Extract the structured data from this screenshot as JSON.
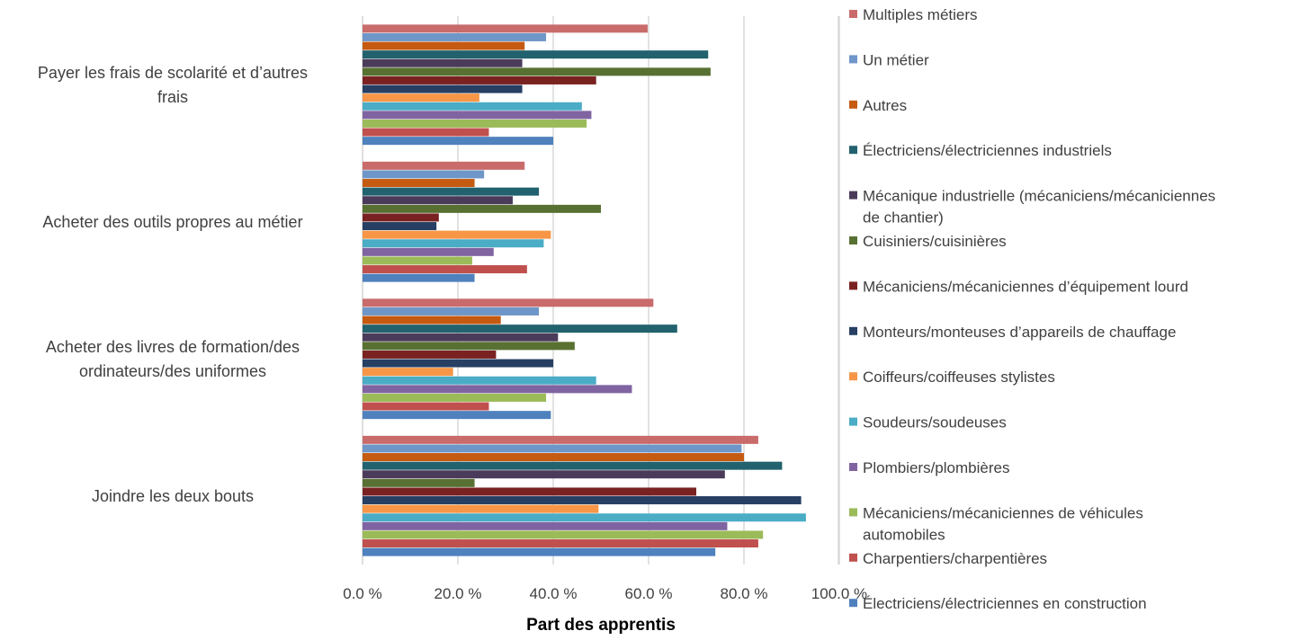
{
  "chart_data": {
    "type": "bar",
    "orientation": "horizontal",
    "xlabel": "Part des apprentis",
    "ylabel": "",
    "xlim": [
      0,
      100
    ],
    "x_ticks": [
      "0.0 %",
      "20.0 %",
      "40.0 %",
      "60.0 %",
      "80.0 %",
      "100.0 %"
    ],
    "grid": true,
    "legend_position": "right",
    "categories": [
      [
        "Payer les frais de scolarité et d’autres",
        "frais"
      ],
      [
        "Acheter des outils propres au métier"
      ],
      [
        "Acheter des livres de formation/des",
        "ordinateurs/des uniformes"
      ],
      [
        "Joindre les deux bouts"
      ]
    ],
    "series": [
      {
        "name": "Multiples métiers",
        "color": "#C96B6B",
        "values": [
          59.8,
          34.0,
          61.0,
          83.0
        ]
      },
      {
        "name": "Un métier",
        "color": "#6F96C8",
        "values": [
          38.5,
          25.5,
          37.0,
          79.5
        ]
      },
      {
        "name": "Autres",
        "color": "#C55A11",
        "values": [
          34.0,
          23.5,
          29.0,
          80.0
        ]
      },
      {
        "name": "Électriciens/électriciennes industriels",
        "color": "#22626E",
        "values": [
          72.5,
          37.0,
          66.0,
          88.0
        ]
      },
      {
        "name": "Mécanique industrielle (mécaniciens/mécaniciennes de chantier)",
        "color": "#4B3B5A",
        "values": [
          33.5,
          31.5,
          41.0,
          76.0
        ]
      },
      {
        "name": "Cuisiniers/cuisinières",
        "color": "#587132",
        "values": [
          73.0,
          50.0,
          44.5,
          23.5
        ]
      },
      {
        "name": "Mécaniciens/mécaniciennes d’équipement lourd",
        "color": "#7A2222",
        "values": [
          49.0,
          16.0,
          28.0,
          70.0
        ]
      },
      {
        "name": "Monteurs/monteuses d’appareils de chauffage",
        "color": "#263F63",
        "values": [
          33.5,
          15.5,
          40.0,
          92.0
        ]
      },
      {
        "name": "Coiffeurs/coiffeuses stylistes",
        "color": "#F79646",
        "values": [
          24.5,
          39.5,
          19.0,
          49.5
        ]
      },
      {
        "name": "Soudeurs/soudeuses",
        "color": "#4BACC6",
        "values": [
          46.0,
          38.0,
          49.0,
          93.0
        ]
      },
      {
        "name": "Plombiers/plombières",
        "color": "#8064A2",
        "values": [
          48.0,
          27.5,
          56.5,
          76.5
        ]
      },
      {
        "name": "Mécaniciens/mécaniciennes de véhicules automobiles",
        "color": "#9BBB59",
        "values": [
          47.0,
          23.0,
          38.5,
          84.0
        ]
      },
      {
        "name": "Charpentiers/charpentières",
        "color": "#C0504D",
        "values": [
          26.5,
          34.5,
          26.5,
          83.0
        ]
      },
      {
        "name": "Électriciens/électriciennes en construction",
        "color": "#4F81BD",
        "values": [
          40.0,
          23.5,
          39.5,
          74.0
        ]
      }
    ]
  }
}
